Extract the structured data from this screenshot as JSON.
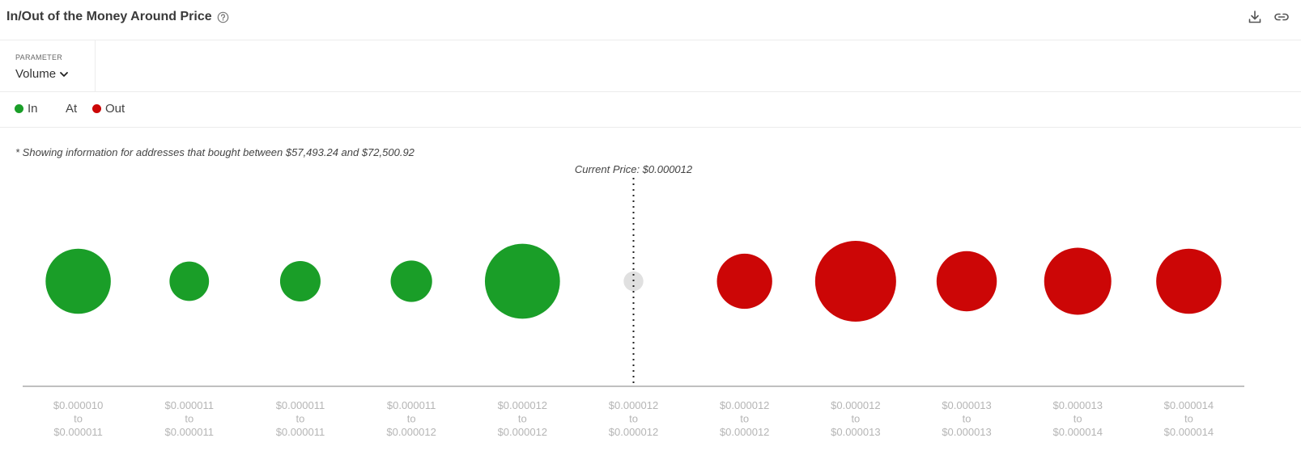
{
  "header": {
    "title": "In/Out of the Money Around Price",
    "help_icon": "question-circle-icon",
    "download_icon": "download-icon",
    "link_icon": "link-icon"
  },
  "parameter": {
    "label": "PARAMETER",
    "value": "Volume"
  },
  "legend": {
    "in_label": "In",
    "at_label": "At",
    "out_label": "Out",
    "in_color": "#1a9e28",
    "at_color": "#e0e0e0",
    "out_color": "#cc0606"
  },
  "note": "* Showing information for addresses that bought between $57,493.24 and $72,500.92",
  "chart_data": {
    "type": "bubble",
    "current_price_label": "Current Price: $0.000012",
    "range_word": "to",
    "bins": [
      {
        "from": "$0.000010",
        "to": "$0.000011",
        "status": "in",
        "relative_size": 0.66
      },
      {
        "from": "$0.000011",
        "to": "$0.000011",
        "status": "in",
        "relative_size": 0.4
      },
      {
        "from": "$0.000011",
        "to": "$0.000011",
        "status": "in",
        "relative_size": 0.41
      },
      {
        "from": "$0.000011",
        "to": "$0.000012",
        "status": "in",
        "relative_size": 0.42
      },
      {
        "from": "$0.000012",
        "to": "$0.000012",
        "status": "in",
        "relative_size": 0.76
      },
      {
        "from": "$0.000012",
        "to": "$0.000012",
        "status": "at",
        "relative_size": 0.2
      },
      {
        "from": "$0.000012",
        "to": "$0.000012",
        "status": "out",
        "relative_size": 0.56
      },
      {
        "from": "$0.000012",
        "to": "$0.000013",
        "status": "out",
        "relative_size": 0.82
      },
      {
        "from": "$0.000013",
        "to": "$0.000013",
        "status": "out",
        "relative_size": 0.61
      },
      {
        "from": "$0.000013",
        "to": "$0.000014",
        "status": "out",
        "relative_size": 0.68
      },
      {
        "from": "$0.000014",
        "to": "$0.000014",
        "status": "out",
        "relative_size": 0.66
      }
    ]
  }
}
